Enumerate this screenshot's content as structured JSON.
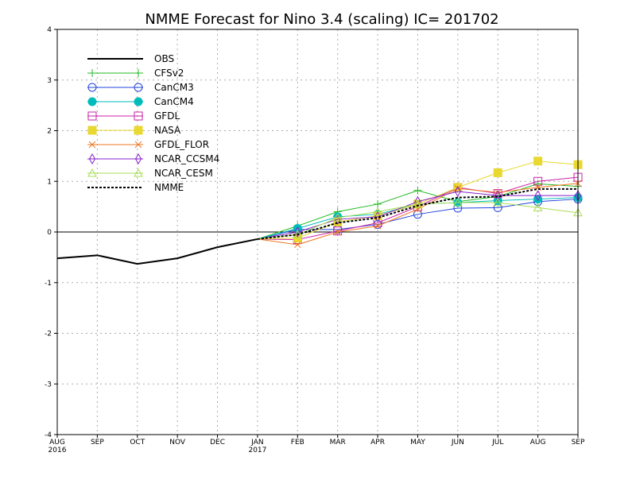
{
  "chart_data": {
    "type": "line",
    "title": "NMME Forecast for Nino 3.4 (scaling) IC= 201702",
    "xlabel": "",
    "ylabel": "",
    "x": [
      "AUG",
      "SEP",
      "OCT",
      "NOV",
      "DEC",
      "JAN",
      "FEB",
      "MAR",
      "APR",
      "MAY",
      "JUN",
      "JUL",
      "AUG",
      "SEP"
    ],
    "x_years": {
      "AUG": "2016",
      "JAN": "2017"
    },
    "ylim": [
      -4,
      4
    ],
    "yticks": [
      "-4",
      "-3",
      "-2",
      "-1",
      "0",
      "1",
      "2",
      "3",
      "4"
    ],
    "grid": true,
    "legend_position": "top-left",
    "series": [
      {
        "name": "OBS",
        "color": "#000000",
        "marker": "none",
        "dash": "solid",
        "width": 2,
        "values": [
          -0.52,
          -0.46,
          -0.63,
          -0.52,
          -0.3,
          -0.14,
          null,
          null,
          null,
          null,
          null,
          null,
          null,
          null
        ]
      },
      {
        "name": "CFSv2",
        "color": "#22bb22",
        "marker": "plus",
        "dash": "solid",
        "width": 1,
        "values": [
          null,
          null,
          null,
          null,
          null,
          -0.14,
          0.12,
          0.4,
          0.55,
          0.82,
          0.6,
          0.7,
          0.95,
          0.9
        ]
      },
      {
        "name": "CanCM3",
        "color": "#2244dd",
        "marker": "circle-open",
        "dash": "solid",
        "width": 1,
        "values": [
          null,
          null,
          null,
          null,
          null,
          -0.14,
          0.05,
          0.05,
          0.15,
          0.35,
          0.47,
          0.48,
          0.6,
          0.65
        ]
      },
      {
        "name": "CanCM4",
        "color": "#00bbbb",
        "marker": "circle-filled",
        "dash": "solid",
        "width": 1,
        "values": [
          null,
          null,
          null,
          null,
          null,
          -0.14,
          0.07,
          0.3,
          0.35,
          0.55,
          0.58,
          0.62,
          0.65,
          0.68
        ]
      },
      {
        "name": "GFDL",
        "color": "#cc22aa",
        "marker": "square-open",
        "dash": "solid",
        "width": 1,
        "values": [
          null,
          null,
          null,
          null,
          null,
          -0.14,
          -0.15,
          0.02,
          0.18,
          0.5,
          0.88,
          0.76,
          1.0,
          1.08
        ]
      },
      {
        "name": "NASA",
        "color": "#e8d830",
        "marker": "square-filled",
        "dash": "solid",
        "width": 1,
        "values": [
          null,
          null,
          null,
          null,
          null,
          -0.14,
          -0.12,
          0.2,
          0.32,
          0.55,
          0.88,
          1.17,
          1.4,
          1.33
        ]
      },
      {
        "name": "GFDL_FLOR",
        "color": "#ee7722",
        "marker": "x",
        "dash": "solid",
        "width": 1,
        "values": [
          null,
          null,
          null,
          null,
          null,
          -0.14,
          -0.25,
          0.0,
          0.12,
          0.45,
          0.86,
          0.78,
          0.88,
          0.96
        ]
      },
      {
        "name": "NCAR_CCSM4",
        "color": "#8822cc",
        "marker": "diamond-open",
        "dash": "solid",
        "width": 1,
        "values": [
          null,
          null,
          null,
          null,
          null,
          -0.14,
          0.0,
          0.25,
          0.3,
          0.6,
          0.8,
          0.72,
          0.72,
          0.72
        ]
      },
      {
        "name": "NCAR_CESM",
        "color": "#aadd55",
        "marker": "triangle-open",
        "dash": "solid",
        "width": 1,
        "values": [
          null,
          null,
          null,
          null,
          null,
          -0.14,
          -0.05,
          0.28,
          0.4,
          0.55,
          0.58,
          0.58,
          0.48,
          0.38
        ]
      },
      {
        "name": "NMME",
        "color": "#000000",
        "marker": "none",
        "dash": "dotted",
        "width": 2,
        "values": [
          null,
          null,
          null,
          null,
          null,
          -0.14,
          -0.05,
          0.18,
          0.28,
          0.52,
          0.68,
          0.7,
          0.85,
          0.85
        ]
      }
    ]
  }
}
